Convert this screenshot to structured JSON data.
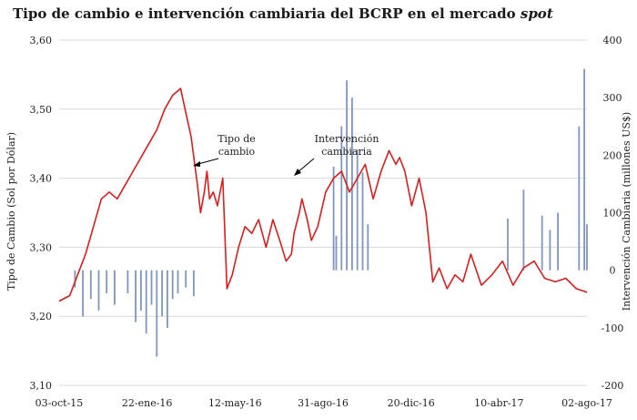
{
  "chart_data": {
    "type": "line",
    "title": "Tipo de cambio e intervención cambiaria del BCRP en el mercado",
    "title_italic": "spot",
    "ylabel_left": "Tipo de Cambio (Sol por Dólar)",
    "ylabel_right": "Intervención Cambiaria (millones US$)",
    "y_left_range": [
      3.1,
      3.6
    ],
    "y_left_ticks": [
      "3,10",
      "3,20",
      "3,30",
      "3,40",
      "3,50",
      "3,60"
    ],
    "y_right_range": [
      -200,
      400
    ],
    "y_right_ticks": [
      "-200",
      "-100",
      "0",
      "100",
      "200",
      "300",
      "400"
    ],
    "x_ticks": [
      "03-oct-15",
      "22-ene-16",
      "12-may-16",
      "31-ago-16",
      "20-dic-16",
      "10-abr-17",
      "02-ago-17"
    ],
    "grid": "horizontal",
    "annotations": [
      {
        "lines": [
          "Tipo de",
          "cambio"
        ]
      },
      {
        "lines": [
          "Intervención",
          "cambiaria"
        ]
      }
    ],
    "series": [
      {
        "role": "exchange-rate",
        "color": "#d81e1e",
        "x": [
          0,
          0.02,
          0.035,
          0.05,
          0.065,
          0.08,
          0.095,
          0.11,
          0.125,
          0.14,
          0.155,
          0.17,
          0.185,
          0.2,
          0.215,
          0.23,
          0.25,
          0.262,
          0.268,
          0.275,
          0.28,
          0.285,
          0.292,
          0.3,
          0.31,
          0.318,
          0.328,
          0.34,
          0.352,
          0.365,
          0.378,
          0.392,
          0.405,
          0.418,
          0.43,
          0.44,
          0.445,
          0.455,
          0.46,
          0.47,
          0.478,
          0.49,
          0.505,
          0.52,
          0.535,
          0.55,
          0.565,
          0.58,
          0.595,
          0.61,
          0.625,
          0.638,
          0.645,
          0.655,
          0.668,
          0.682,
          0.695,
          0.708,
          0.72,
          0.735,
          0.75,
          0.765,
          0.78,
          0.8,
          0.82,
          0.84,
          0.86,
          0.88,
          0.9,
          0.92,
          0.94,
          0.96,
          0.98,
          1.0
        ],
        "values": [
          3.222,
          3.23,
          3.26,
          3.29,
          3.33,
          3.37,
          3.38,
          3.37,
          3.39,
          3.41,
          3.43,
          3.45,
          3.47,
          3.5,
          3.52,
          3.53,
          3.46,
          3.39,
          3.35,
          3.38,
          3.41,
          3.37,
          3.38,
          3.36,
          3.4,
          3.24,
          3.26,
          3.3,
          3.33,
          3.32,
          3.34,
          3.3,
          3.34,
          3.31,
          3.28,
          3.29,
          3.32,
          3.35,
          3.37,
          3.34,
          3.31,
          3.33,
          3.38,
          3.4,
          3.41,
          3.38,
          3.4,
          3.42,
          3.37,
          3.41,
          3.44,
          3.42,
          3.43,
          3.41,
          3.36,
          3.4,
          3.35,
          3.25,
          3.27,
          3.24,
          3.26,
          3.25,
          3.29,
          3.245,
          3.26,
          3.28,
          3.245,
          3.27,
          3.28,
          3.255,
          3.25,
          3.255,
          3.24,
          3.235
        ]
      },
      {
        "role": "intervention",
        "color": "#7f96bd",
        "x": [
          0.03,
          0.045,
          0.06,
          0.075,
          0.09,
          0.105,
          0.13,
          0.145,
          0.155,
          0.165,
          0.175,
          0.185,
          0.195,
          0.205,
          0.215,
          0.225,
          0.24,
          0.255,
          0.52,
          0.525,
          0.535,
          0.545,
          0.555,
          0.565,
          0.575,
          0.585,
          0.85,
          0.88,
          0.915,
          0.93,
          0.945,
          0.985,
          0.995,
          1.0
        ],
        "values": [
          -30,
          -80,
          -50,
          -70,
          -40,
          -60,
          -40,
          -90,
          -70,
          -110,
          -60,
          -150,
          -80,
          -100,
          -50,
          -40,
          -30,
          -45,
          180,
          60,
          250,
          330,
          300,
          210,
          170,
          80,
          90,
          140,
          95,
          70,
          100,
          250,
          350,
          80
        ]
      }
    ]
  }
}
